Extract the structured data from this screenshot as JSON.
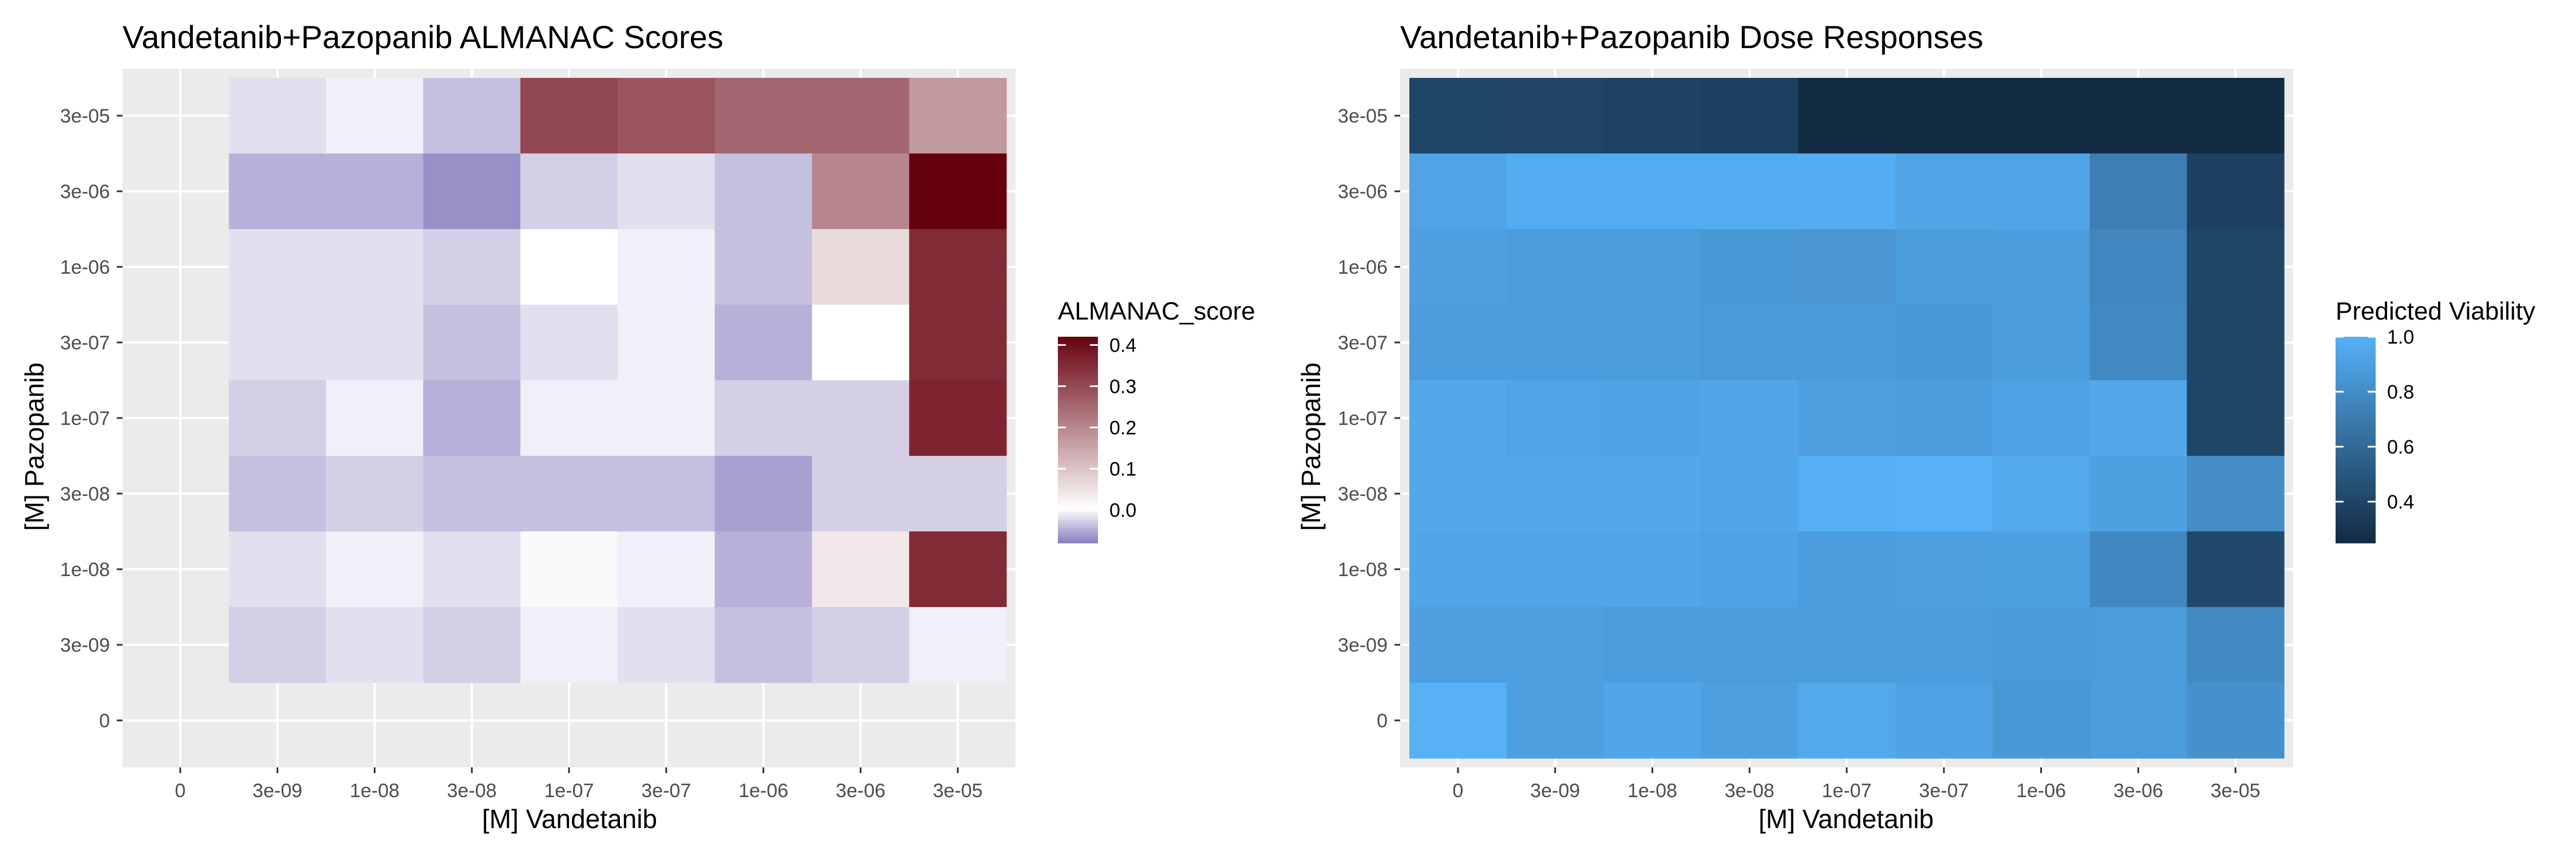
{
  "chart_data": [
    {
      "type": "heatmap",
      "title": "Vandetanib+Pazopanib ALMANAC Scores",
      "xlabel": "[M] Vandetanib",
      "ylabel": "[M] Pazopanib",
      "x_categories": [
        "0",
        "3e-09",
        "1e-08",
        "3e-08",
        "1e-07",
        "3e-07",
        "1e-06",
        "3e-06",
        "3e-05"
      ],
      "y_categories": [
        "0",
        "3e-09",
        "1e-08",
        "3e-08",
        "1e-07",
        "3e-07",
        "1e-06",
        "3e-06",
        "3e-05"
      ],
      "values_note_rows_top_to_bottom": "rows listed from 3e-05 (top) to 0 (bottom); null = empty cell",
      "values": [
        [
          null,
          -0.02,
          -0.01,
          -0.04,
          0.3,
          0.28,
          0.25,
          0.25,
          0.17
        ],
        [
          null,
          -0.05,
          -0.05,
          -0.07,
          -0.03,
          -0.02,
          -0.04,
          0.2,
          0.42
        ],
        [
          null,
          -0.02,
          -0.02,
          -0.03,
          0.0,
          -0.01,
          -0.04,
          0.06,
          0.35
        ],
        [
          null,
          -0.02,
          -0.02,
          -0.04,
          -0.02,
          -0.01,
          -0.05,
          0.0,
          0.35
        ],
        [
          null,
          -0.03,
          -0.01,
          -0.05,
          -0.01,
          -0.01,
          -0.03,
          -0.03,
          0.36
        ],
        [
          null,
          -0.04,
          -0.03,
          -0.04,
          -0.04,
          -0.04,
          -0.06,
          -0.03,
          -0.03
        ],
        [
          null,
          -0.02,
          -0.01,
          -0.02,
          0.01,
          -0.01,
          -0.05,
          0.04,
          0.35
        ],
        [
          null,
          -0.03,
          -0.02,
          -0.03,
          -0.01,
          -0.02,
          -0.04,
          -0.03,
          -0.01
        ],
        [
          null,
          null,
          null,
          null,
          null,
          null,
          null,
          null,
          null
        ]
      ],
      "legend": {
        "title": "ALMANAC_score",
        "ticks": [
          0.0,
          0.1,
          0.2,
          0.3,
          0.4
        ],
        "tick_labels": [
          "0.0",
          "0.1",
          "0.2",
          "0.3",
          "0.4"
        ],
        "range": [
          -0.08,
          0.42
        ],
        "low_color": "#8b80c0",
        "mid_color": "#ffffff",
        "high_color": "#67000d"
      },
      "grid": true,
      "legend_position": "right"
    },
    {
      "type": "heatmap",
      "title": "Vandetanib+Pazopanib Dose Responses",
      "xlabel": "[M] Vandetanib",
      "ylabel": "[M] Pazopanib",
      "x_categories": [
        "0",
        "3e-09",
        "1e-08",
        "3e-08",
        "1e-07",
        "3e-07",
        "1e-06",
        "3e-06",
        "3e-05"
      ],
      "y_categories": [
        "0",
        "3e-09",
        "1e-08",
        "3e-08",
        "1e-07",
        "3e-07",
        "1e-06",
        "3e-06",
        "3e-05"
      ],
      "values_note_rows_top_to_bottom": "rows listed from 3e-05 (top) to 0 (bottom)",
      "values": [
        [
          0.4,
          0.39,
          0.38,
          0.37,
          0.25,
          0.25,
          0.25,
          0.25,
          0.25
        ],
        [
          0.93,
          0.97,
          0.97,
          0.97,
          0.98,
          0.93,
          0.93,
          0.72,
          0.37
        ],
        [
          0.9,
          0.88,
          0.88,
          0.86,
          0.85,
          0.88,
          0.89,
          0.76,
          0.4
        ],
        [
          0.89,
          0.89,
          0.88,
          0.87,
          0.87,
          0.86,
          0.89,
          0.78,
          0.4
        ],
        [
          0.95,
          0.93,
          0.92,
          0.94,
          0.9,
          0.89,
          0.92,
          0.95,
          0.4
        ],
        [
          0.95,
          0.95,
          0.95,
          0.94,
          0.99,
          1.0,
          0.96,
          0.91,
          0.8
        ],
        [
          0.94,
          0.94,
          0.94,
          0.92,
          0.89,
          0.9,
          0.91,
          0.77,
          0.42
        ],
        [
          0.9,
          0.9,
          0.89,
          0.88,
          0.88,
          0.89,
          0.87,
          0.88,
          0.78
        ],
        [
          1.0,
          0.9,
          0.94,
          0.9,
          0.96,
          0.92,
          0.86,
          0.88,
          0.82
        ]
      ],
      "legend": {
        "title": "Predicted Viability",
        "ticks": [
          0.4,
          0.6,
          0.8,
          1.0
        ],
        "tick_labels": [
          "0.4",
          "0.6",
          "0.8",
          "1.0"
        ],
        "range": [
          0.25,
          1.0
        ],
        "low_color": "#132b43",
        "high_color": "#56b1f7"
      },
      "grid": true,
      "legend_position": "right"
    }
  ],
  "colors": {
    "panel_background": "#ebebeb",
    "gridline": "#ffffff",
    "tick_text": "#4d4d4d"
  }
}
